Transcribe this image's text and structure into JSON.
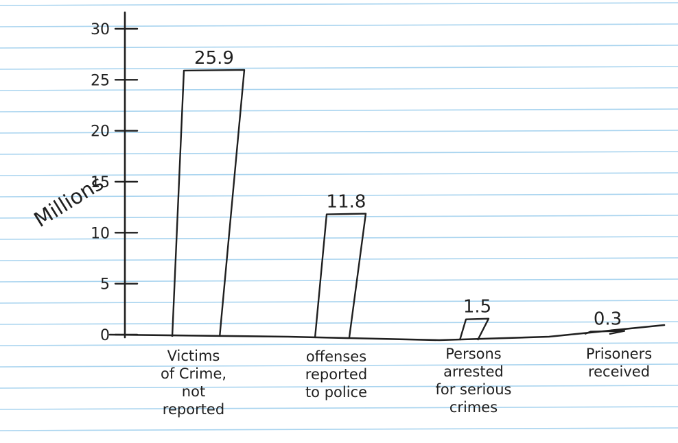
{
  "chart_data": {
    "type": "bar",
    "ylabel": "Millions",
    "xlabel": "",
    "ylim": [
      0,
      30
    ],
    "yticks": [
      "0",
      "5",
      "10",
      "15",
      "20",
      "25",
      "30"
    ],
    "categories": [
      [
        "Victims",
        "of Crime,",
        "not",
        "reported"
      ],
      [
        "offenses",
        "reported",
        "to police"
      ],
      [
        "Persons",
        "arrested",
        "for serious",
        "crimes"
      ],
      [
        "Prisoners",
        "received"
      ]
    ],
    "values": [
      25.9,
      11.8,
      1.5,
      0.3
    ],
    "data_labels": [
      "25.9",
      "11.8",
      "1.5",
      "0.3"
    ],
    "colors": {
      "paper": "#ffffff",
      "rule": "#a9d4ef",
      "ink": "#1f1f1f"
    }
  }
}
